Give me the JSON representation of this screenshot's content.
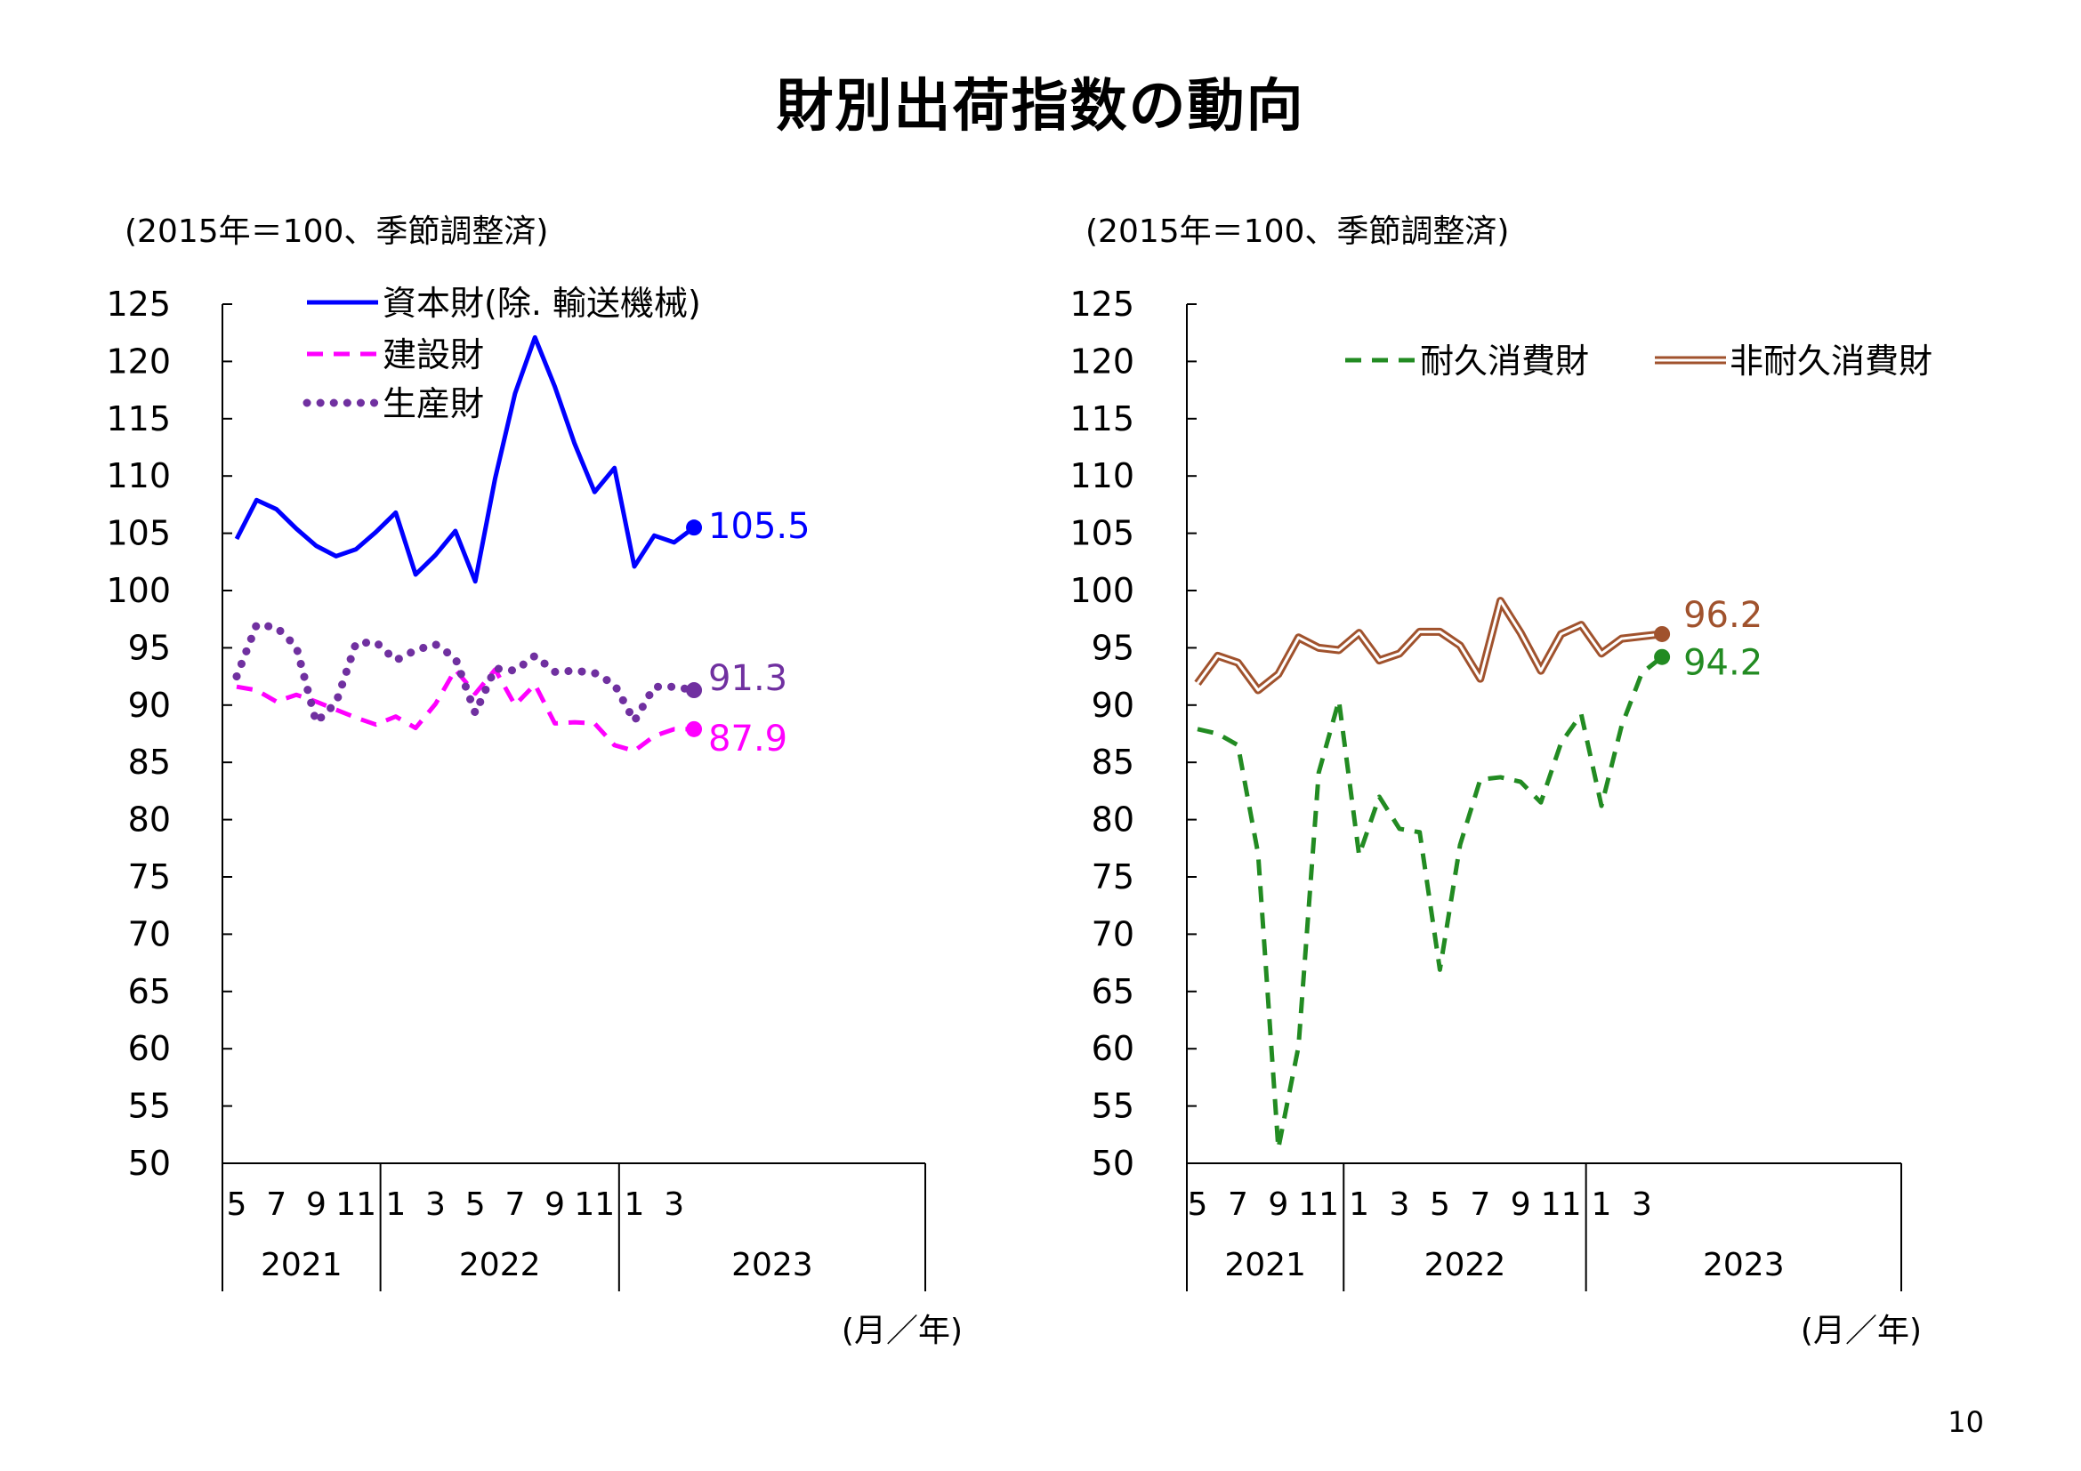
{
  "title": "財別出荷指数の動向",
  "page_number": "10",
  "colors": {
    "capital": "#0000ff",
    "construction": "#ff00ff",
    "producer": "#7030a0",
    "durable": "#228b22",
    "nondurable": "#a0522d"
  },
  "chart_data": [
    {
      "type": "line",
      "note": "(2015年＝100、季節調整済)",
      "xlabel": "(月／年)",
      "ylim": [
        50,
        125
      ],
      "y_ticks": [
        50,
        55,
        60,
        65,
        70,
        75,
        80,
        85,
        90,
        95,
        100,
        105,
        110,
        115,
        120,
        125
      ],
      "month_labels": [
        "5",
        "7",
        "9",
        "11",
        "1",
        "3",
        "5",
        "7",
        "9",
        "11",
        "1",
        "3"
      ],
      "year_labels": [
        "2021",
        "2022",
        "2023"
      ],
      "x": [
        "2021-05",
        "2021-06",
        "2021-07",
        "2021-08",
        "2021-09",
        "2021-10",
        "2021-11",
        "2021-12",
        "2022-01",
        "2022-02",
        "2022-03",
        "2022-04",
        "2022-05",
        "2022-06",
        "2022-07",
        "2022-08",
        "2022-09",
        "2022-10",
        "2022-11",
        "2022-12",
        "2023-01",
        "2023-02",
        "2023-03",
        "2023-04"
      ],
      "legend": [
        "資本財(除. 輸送機械)",
        "建設財",
        "生産財"
      ],
      "series": [
        {
          "name": "資本財(除. 輸送機械)",
          "color_key": "capital",
          "style": "solid",
          "values": [
            104.5,
            107.9,
            107.1,
            105.4,
            103.9,
            103.0,
            103.6,
            105.1,
            106.8,
            101.4,
            103.1,
            105.2,
            100.8,
            109.8,
            117.2,
            122.1,
            117.8,
            112.8,
            108.6,
            110.7,
            102.1,
            104.8,
            104.2,
            105.5
          ],
          "last_label": "105.5"
        },
        {
          "name": "建設財",
          "color_key": "construction",
          "style": "dashed",
          "values": [
            91.6,
            91.3,
            90.3,
            90.9,
            90.3,
            89.6,
            88.9,
            88.3,
            89.0,
            88.0,
            90.1,
            93.1,
            91.0,
            93.1,
            90.0,
            91.8,
            88.4,
            88.5,
            88.4,
            86.5,
            86.0,
            87.3,
            87.9,
            87.9
          ],
          "last_label": "87.9"
        },
        {
          "name": "生産財",
          "color_key": "producer",
          "style": "dotted",
          "values": [
            92.5,
            97.0,
            96.8,
            95.1,
            88.5,
            90.2,
            95.4,
            95.5,
            93.9,
            94.8,
            95.3,
            94.1,
            89.3,
            93.2,
            93.0,
            94.3,
            92.9,
            93.0,
            92.8,
            91.8,
            88.6,
            91.6,
            91.6,
            91.3
          ],
          "last_label": "91.3"
        }
      ]
    },
    {
      "type": "line",
      "note": "(2015年＝100、季節調整済)",
      "xlabel": "(月／年)",
      "ylim": [
        50,
        125
      ],
      "y_ticks": [
        50,
        55,
        60,
        65,
        70,
        75,
        80,
        85,
        90,
        95,
        100,
        105,
        110,
        115,
        120,
        125
      ],
      "month_labels": [
        "5",
        "7",
        "9",
        "11",
        "1",
        "3",
        "5",
        "7",
        "9",
        "11",
        "1",
        "3"
      ],
      "year_labels": [
        "2021",
        "2022",
        "2023"
      ],
      "x": [
        "2021-05",
        "2021-06",
        "2021-07",
        "2021-08",
        "2021-09",
        "2021-10",
        "2021-11",
        "2021-12",
        "2022-01",
        "2022-02",
        "2022-03",
        "2022-04",
        "2022-05",
        "2022-06",
        "2022-07",
        "2022-08",
        "2022-09",
        "2022-10",
        "2022-11",
        "2022-12",
        "2023-01",
        "2023-02",
        "2023-03",
        "2023-04"
      ],
      "legend": [
        "耐久消費財",
        "非耐久消費財"
      ],
      "series": [
        {
          "name": "耐久消費財",
          "color_key": "durable",
          "style": "dashed",
          "values": [
            87.9,
            87.5,
            86.5,
            77.0,
            51.3,
            60.2,
            84.1,
            90.4,
            76.9,
            82.0,
            79.2,
            78.9,
            66.9,
            77.8,
            83.5,
            83.7,
            83.3,
            81.5,
            86.7,
            89.2,
            81.2,
            88.2,
            92.8,
            94.2
          ],
          "last_label": "94.2"
        },
        {
          "name": "非耐久消費財",
          "color_key": "nondurable",
          "style": "double",
          "values": [
            91.9,
            94.3,
            93.7,
            91.3,
            92.7,
            95.9,
            95.0,
            94.8,
            96.3,
            93.9,
            94.5,
            96.4,
            96.4,
            95.2,
            92.3,
            99.1,
            96.3,
            93.0,
            96.2,
            97.0,
            94.5,
            95.8,
            96.0,
            96.2
          ],
          "last_label": "96.2"
        }
      ]
    }
  ]
}
